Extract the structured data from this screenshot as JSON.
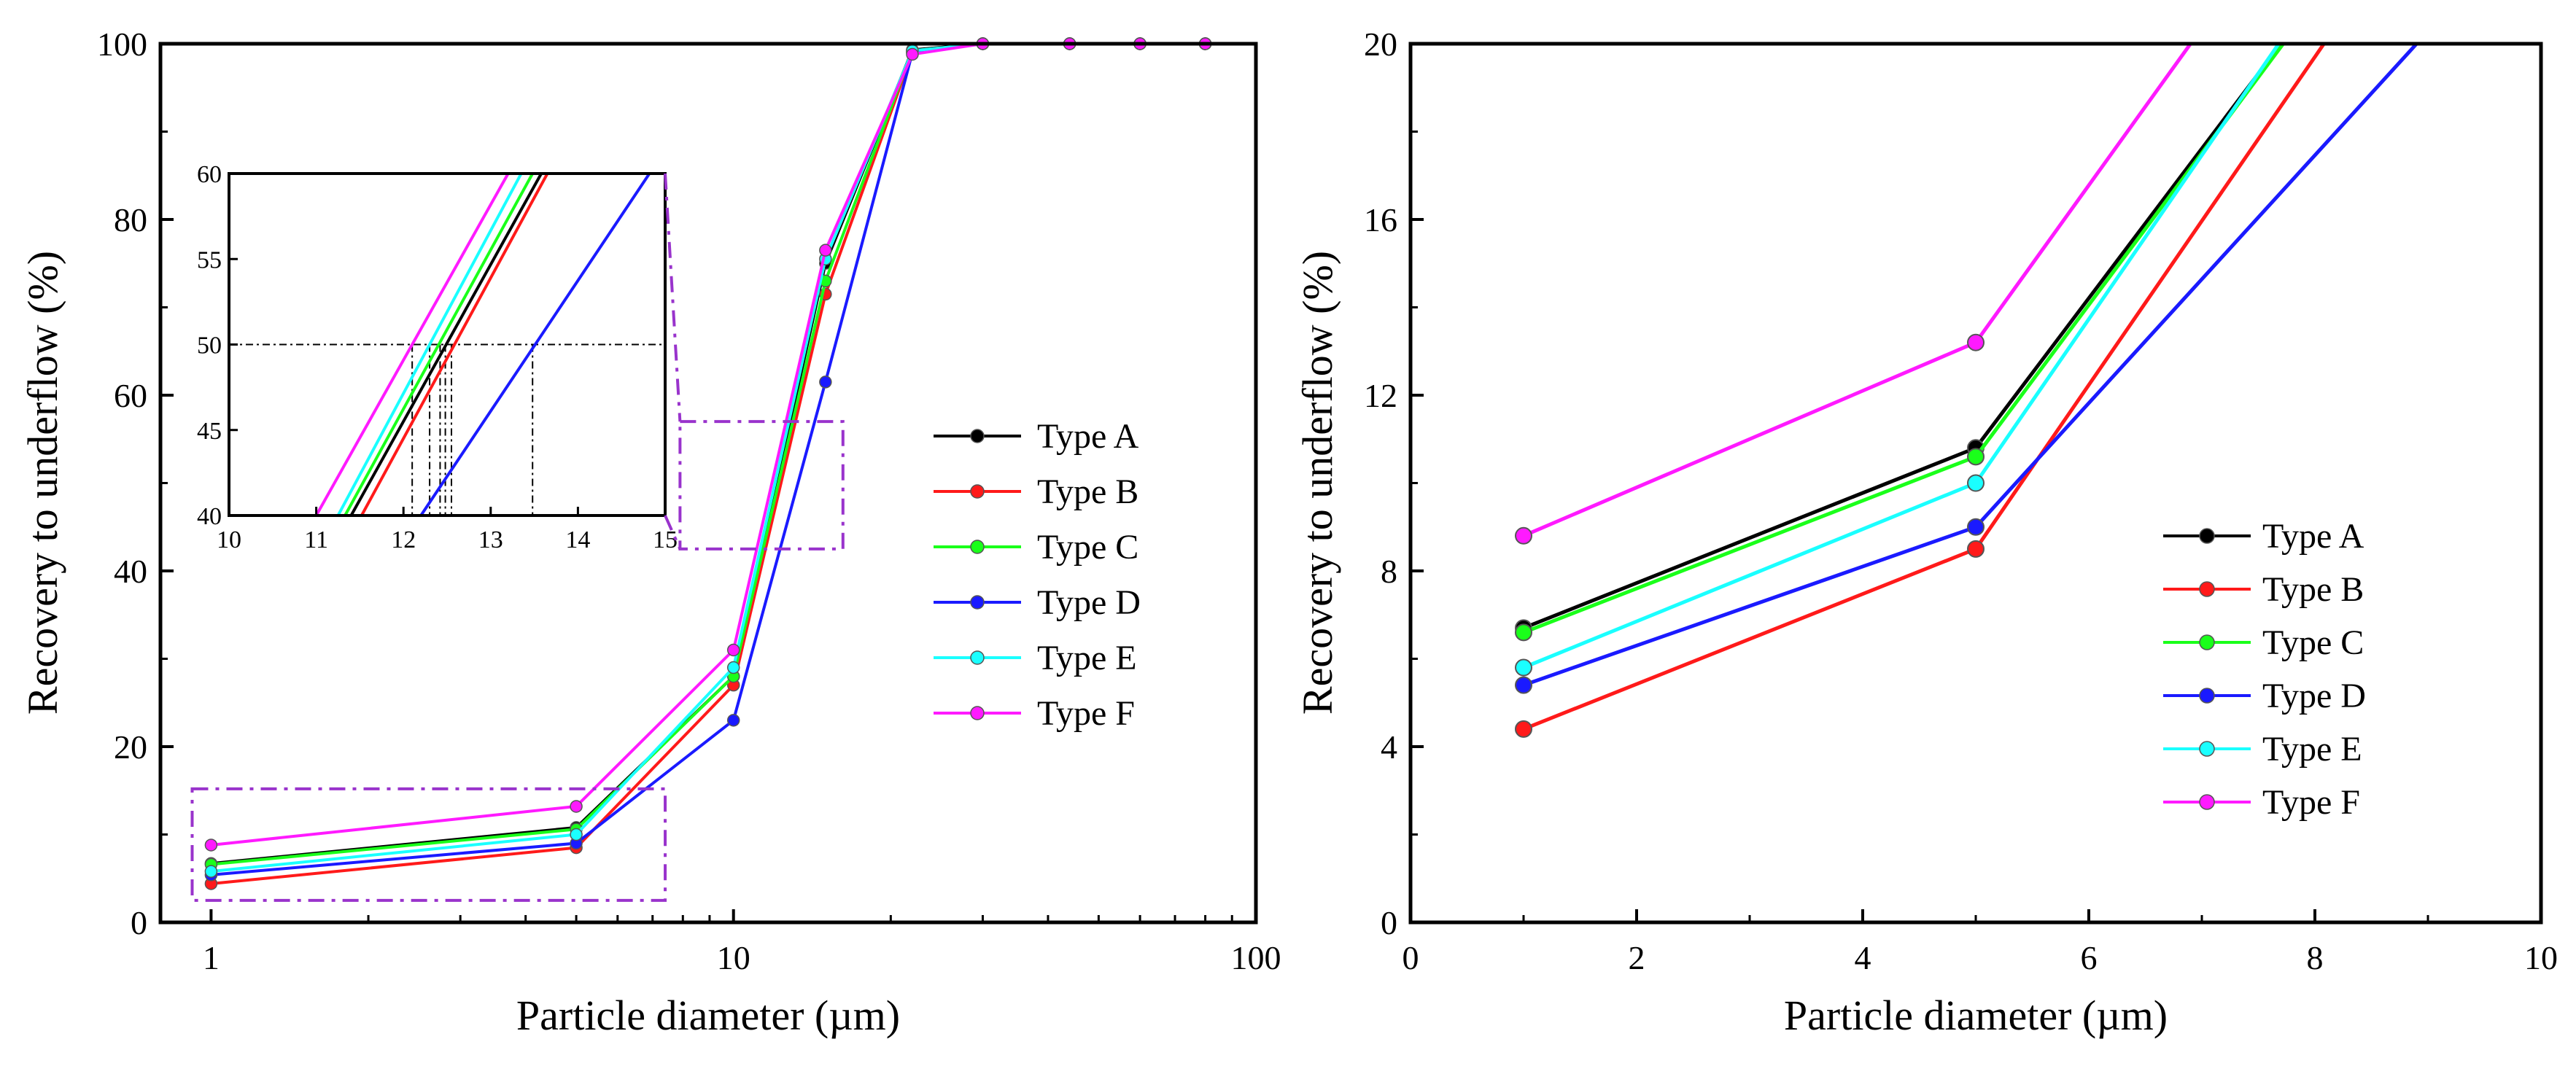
{
  "colors": {
    "Type A": "#000000",
    "Type B": "#ff1a1a",
    "Type C": "#1aff1a",
    "Type D": "#1a1aff",
    "Type E": "#1affff",
    "Type F": "#ff1aff",
    "zoom_box": "#9933cc",
    "guide": "#000000"
  },
  "chart_data": [
    {
      "type": "line",
      "panel": "left",
      "xscale": "log",
      "xlabel": "Particle diameter (µm)",
      "ylabel": "Recovery to underflow (%)",
      "xlim": [
        0.8,
        100
      ],
      "ylim": [
        0,
        100
      ],
      "xticks": [
        1,
        10,
        100
      ],
      "xtick_labels": [
        "1",
        "10",
        "100"
      ],
      "yticks": [
        0,
        20,
        40,
        60,
        80,
        100
      ],
      "ytick_labels": [
        "0",
        "20",
        "40",
        "60",
        "80",
        "100"
      ],
      "x": [
        1,
        5,
        10,
        15,
        22,
        30,
        44,
        60,
        80
      ],
      "series": [
        {
          "name": "Type A",
          "values": [
            6.7,
            10.8,
            28.0,
            75.0,
            99.3,
            100,
            100,
            100,
            100
          ]
        },
        {
          "name": "Type B",
          "values": [
            4.4,
            8.5,
            27.0,
            71.5,
            99.0,
            100,
            100,
            100,
            100
          ]
        },
        {
          "name": "Type C",
          "values": [
            6.6,
            10.6,
            28.0,
            73.0,
            99.2,
            100,
            100,
            100,
            100
          ]
        },
        {
          "name": "Type D",
          "values": [
            5.4,
            9.0,
            23.0,
            61.5,
            99.0,
            100,
            100,
            100,
            100
          ]
        },
        {
          "name": "Type E",
          "values": [
            5.8,
            10.0,
            29.0,
            75.5,
            99.2,
            100,
            100,
            100,
            100
          ]
        },
        {
          "name": "Type F",
          "values": [
            8.8,
            13.2,
            31.0,
            76.5,
            98.8,
            100,
            100,
            100,
            100
          ]
        }
      ],
      "legend": [
        "Type A",
        "Type B",
        "Type C",
        "Type D",
        "Type E",
        "Type F"
      ],
      "zoom_boxes": [
        {
          "x": [
            0.92,
            7.4
          ],
          "y": [
            2.5,
            15.2
          ],
          "maps_to": "right"
        },
        {
          "x": [
            7.9,
            16.2
          ],
          "y": [
            42.5,
            57.0
          ],
          "maps_to": "inset"
        }
      ],
      "inset": {
        "xlim": [
          10,
          15
        ],
        "ylim": [
          40,
          60
        ],
        "xticks": [
          10,
          11,
          12,
          13,
          14,
          15
        ],
        "xtick_labels": [
          "10",
          "11",
          "12",
          "13",
          "14",
          "15"
        ],
        "yticks": [
          40,
          45,
          50,
          55,
          60
        ],
        "ytick_labels": [
          "40",
          "45",
          "50",
          "55",
          "60"
        ],
        "reference_y": 50,
        "lines": [
          {
            "name": "Type A",
            "x": [
              11.4,
              13.58
            ],
            "y": [
              40,
              60
            ]
          },
          {
            "name": "Type B",
            "x": [
              11.52,
              13.65
            ],
            "y": [
              40,
              60
            ]
          },
          {
            "name": "Type C",
            "x": [
              11.33,
              13.48
            ],
            "y": [
              40,
              60
            ]
          },
          {
            "name": "Type D",
            "x": [
              12.2,
              14.82
            ],
            "y": [
              40,
              60
            ]
          },
          {
            "name": "Type E",
            "x": [
              11.25,
              13.35
            ],
            "y": [
              40,
              60
            ]
          },
          {
            "name": "Type F",
            "x": [
              11.0,
              13.2
            ],
            "y": [
              40,
              60
            ]
          }
        ],
        "d50": [
          12.1,
          12.3,
          12.42,
          12.48,
          12.55,
          13.48
        ]
      }
    },
    {
      "type": "line",
      "panel": "right",
      "xscale": "linear",
      "xlabel": "Particle diameter (µm)",
      "ylabel": "Recovery to underflow (%)",
      "xlim": [
        0,
        10
      ],
      "ylim": [
        0,
        20
      ],
      "xticks": [
        0,
        2,
        4,
        6,
        8,
        10
      ],
      "xtick_labels": [
        "0",
        "2",
        "4",
        "6",
        "8",
        "10"
      ],
      "yticks": [
        0,
        4,
        8,
        12,
        16,
        20
      ],
      "ytick_labels": [
        "0",
        "4",
        "8",
        "12",
        "16",
        "20"
      ],
      "series": [
        {
          "name": "Type A",
          "x": [
            1,
            5,
            7.7
          ],
          "values": [
            6.7,
            10.8,
            20
          ]
        },
        {
          "name": "Type B",
          "x": [
            1,
            5,
            8.08
          ],
          "values": [
            4.4,
            8.5,
            20
          ]
        },
        {
          "name": "Type C",
          "x": [
            1,
            5,
            7.72
          ],
          "values": [
            6.6,
            10.6,
            20
          ]
        },
        {
          "name": "Type D",
          "x": [
            1,
            5,
            8.9
          ],
          "values": [
            5.4,
            9.0,
            20
          ]
        },
        {
          "name": "Type E",
          "x": [
            1,
            5,
            7.68
          ],
          "values": [
            5.8,
            10.0,
            20
          ]
        },
        {
          "name": "Type F",
          "x": [
            1,
            5,
            6.9
          ],
          "values": [
            8.8,
            13.2,
            20
          ]
        }
      ],
      "legend": [
        "Type A",
        "Type B",
        "Type C",
        "Type D",
        "Type E",
        "Type F"
      ]
    }
  ]
}
